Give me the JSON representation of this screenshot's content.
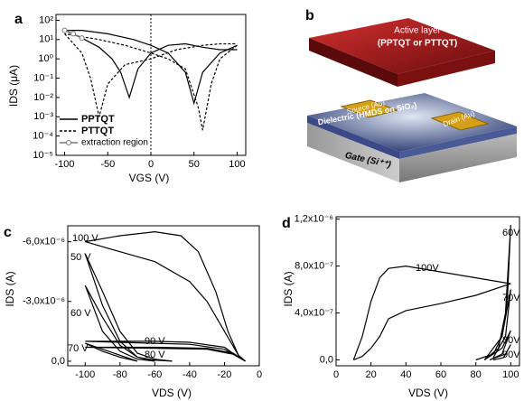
{
  "panel_letters": [
    "a",
    "b",
    "c",
    "d"
  ],
  "diagram": {
    "active_layer": "Active layer",
    "active_material": "(PPTQT or PTTQT)",
    "source": "Source (Au)",
    "drain": "Drain (Au)",
    "dielectric": "Dielectric (HMDS on SiO₂)",
    "gate": "Gate (Si⁺⁺)"
  },
  "chart_data": [
    {
      "type": "line",
      "x_label": "VGS (V)",
      "y_label": "IDS (μA)",
      "log_y": true,
      "xlim": [
        -110,
        110
      ],
      "xticks": [
        -100,
        -50,
        0,
        50,
        100
      ],
      "ylim": [
        1e-05,
        200
      ],
      "yticks": [
        {
          "value": 1e-05,
          "label": "10⁻⁵"
        },
        {
          "value": 0.0001,
          "label": "10⁻⁴"
        },
        {
          "value": 0.001,
          "label": "10⁻³"
        },
        {
          "value": 0.01,
          "label": "10⁻²"
        },
        {
          "value": 0.1,
          "label": "10⁻¹"
        },
        {
          "value": 1,
          "label": "10⁰"
        },
        {
          "value": 10,
          "label": "10¹"
        },
        {
          "value": 100,
          "label": "10²"
        }
      ],
      "legend": "lower left",
      "series": [
        {
          "name": "PPTQT",
          "color": "#000",
          "dash": "solid",
          "x": [
            -100,
            -80,
            -60,
            -45,
            -35,
            -25,
            -15,
            0,
            20,
            40,
            60,
            80,
            100,
            null,
            100,
            80,
            60,
            50,
            40,
            20,
            0,
            -20,
            -50,
            -80,
            -100
          ],
          "values": [
            30,
            12,
            4,
            1,
            0.2,
            0.01,
            0.3,
            2,
            5,
            6,
            4,
            3,
            3,
            null,
            5,
            2,
            0.2,
            0.005,
            0.2,
            2,
            5,
            10,
            20,
            30,
            30
          ]
        },
        {
          "name": "PTTQT",
          "color": "#000",
          "dash": "dashed",
          "x": [
            -100,
            -80,
            -70,
            -60,
            -50,
            -30,
            0,
            30,
            60,
            80,
            100,
            null,
            100,
            80,
            70,
            60,
            55,
            40,
            20,
            0,
            -30,
            -60,
            -100
          ],
          "values": [
            20,
            2,
            0.1,
            0.001,
            0.05,
            0.5,
            1,
            3,
            5,
            6,
            6,
            null,
            5,
            1,
            0.05,
            0.0002,
            0.003,
            0.3,
            1,
            2,
            5,
            10,
            20
          ]
        },
        {
          "name": "extraction region",
          "color": "#777",
          "dash": "solid",
          "marker": "circle",
          "x": [
            -100,
            -90,
            -80
          ],
          "values": [
            30,
            20,
            12
          ]
        }
      ]
    },
    {
      "type": "line",
      "x_label": "VDS (V)",
      "y_label": "IDS (A)",
      "xlim": [
        -110,
        0
      ],
      "xticks": [
        -100,
        -80,
        -60,
        -40,
        -20,
        0
      ],
      "ylim": [
        2.3e-07,
        -6.8e-06
      ],
      "yticks": [
        {
          "value": 0,
          "label": "0,0"
        },
        {
          "value": -3e-06,
          "label": "-3,0x10⁻⁶"
        },
        {
          "value": -6e-06,
          "label": "-6,0x10⁻⁶"
        }
      ],
      "series": [
        {
          "name": "100 V",
          "color": "#000",
          "x": [
            -8,
            -12,
            -18,
            -25,
            -35,
            -45,
            -60,
            -80,
            -100,
            -80,
            -60,
            -40,
            -30,
            -20,
            -12,
            -8
          ],
          "values": [
            0,
            -3e-07,
            -1.5e-06,
            -3.5e-06,
            -5.5e-06,
            -6.3e-06,
            -6.5e-06,
            -6.3e-06,
            -6e-06,
            -5.5e-06,
            -5e-06,
            -4e-06,
            -3e-06,
            -1.5e-06,
            -3e-07,
            0
          ]
        },
        {
          "name": "50 V",
          "color": "#000",
          "x": [
            -100,
            -90,
            -80,
            -70,
            -60,
            -50,
            -60,
            -70,
            -80,
            -90,
            -100
          ],
          "values": [
            -5.4e-06,
            -3.5e-06,
            -1.5e-06,
            -4e-07,
            -1e-07,
            0,
            -5e-08,
            -2e-07,
            -1e-06,
            -2.8e-06,
            -5.4e-06
          ]
        },
        {
          "name": "60 V",
          "color": "#000",
          "x": [
            -100,
            -90,
            -80,
            -70,
            -60,
            -70,
            -80,
            -90,
            -100
          ],
          "values": [
            -3.8e-06,
            -2.2e-06,
            -8e-07,
            -2e-07,
            0,
            -1e-07,
            -5e-07,
            -1.5e-06,
            -3.8e-06
          ]
        },
        {
          "name": "70 V",
          "color": "#000",
          "x": [
            -100,
            -90,
            -80,
            -70,
            -80,
            -90,
            -100
          ],
          "values": [
            -9e-07,
            -6e-07,
            -3e-07,
            0,
            -2e-07,
            -5e-07,
            -9e-07
          ]
        },
        {
          "name": "90 V",
          "color": "#000",
          "x": [
            -100,
            -80,
            -60,
            -40,
            -20,
            -12,
            -8,
            -20,
            -40,
            -60,
            -80,
            -100
          ],
          "values": [
            -1e-06,
            -1e-06,
            -1e-06,
            -9.5e-07,
            -7e-07,
            -2e-07,
            0,
            -6e-07,
            -8.5e-07,
            -9e-07,
            -9.5e-07,
            -1e-06
          ]
        },
        {
          "name": "80 V",
          "color": "#000",
          "x": [
            -100,
            -60,
            -30,
            -15,
            -8,
            -15,
            -30,
            -60,
            -100
          ],
          "values": [
            -7e-07,
            -7e-07,
            -6.5e-07,
            -4e-07,
            0,
            -3.5e-07,
            -6e-07,
            -6.5e-07,
            -7e-07
          ]
        }
      ]
    },
    {
      "type": "line",
      "x_label": "VDS (V)",
      "y_label": "IDS (A)",
      "xlim": [
        0,
        105
      ],
      "xticks": [
        0,
        20,
        40,
        60,
        80,
        100
      ],
      "ylim": [
        -5e-08,
        1.22e-06
      ],
      "yticks": [
        {
          "value": 0,
          "label": "0,0"
        },
        {
          "value": 4e-07,
          "label": "4,0x10⁻⁷"
        },
        {
          "value": 8e-07,
          "label": "8,0x10⁻⁷"
        },
        {
          "value": 1.2e-06,
          "label": "1,2x10⁻⁶"
        }
      ],
      "series": [
        {
          "name": "100V",
          "color": "#000",
          "x": [
            10,
            15,
            20,
            25,
            30,
            40,
            60,
            80,
            100,
            80,
            60,
            40,
            30,
            25,
            20,
            15,
            10
          ],
          "values": [
            0,
            2e-07,
            5e-07,
            7e-07,
            7.8e-07,
            8e-07,
            7.5e-07,
            7e-07,
            6.5e-07,
            5.5e-07,
            4.8e-07,
            4.2e-07,
            3.5e-07,
            2e-07,
            1e-07,
            3e-08,
            0
          ]
        },
        {
          "name": "60V",
          "color": "#000",
          "x": [
            80,
            90,
            95,
            98,
            100,
            97,
            93,
            85
          ],
          "values": [
            0,
            5e-08,
            2e-07,
            5e-07,
            1.15e-06,
            4e-07,
            1e-07,
            0
          ]
        },
        {
          "name": "70V",
          "color": "#000",
          "x": [
            85,
            95,
            100,
            97,
            90
          ],
          "values": [
            0,
            2e-07,
            6e-07,
            2e-07,
            2e-08
          ]
        },
        {
          "name": "80V",
          "color": "#000",
          "x": [
            85,
            95,
            100,
            95,
            88
          ],
          "values": [
            0,
            1e-07,
            2.5e-07,
            5e-08,
            0
          ]
        },
        {
          "name": "90V",
          "color": "#000",
          "x": [
            88,
            97,
            100,
            96,
            90
          ],
          "values": [
            0,
            5e-08,
            1.3e-07,
            2e-08,
            0
          ]
        }
      ]
    }
  ]
}
